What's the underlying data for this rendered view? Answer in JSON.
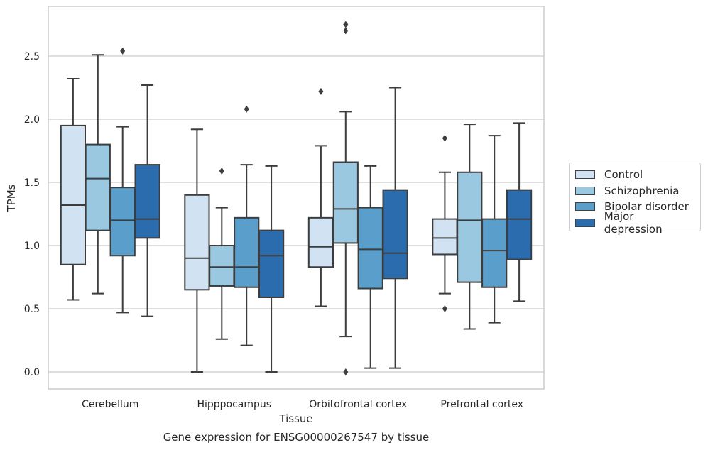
{
  "chart_data": {
    "type": "box",
    "categories": [
      "Cerebellum",
      "Hipppocampus",
      "Orbitofrontal cortex",
      "Prefrontal cortex"
    ],
    "xlabel": "Tissue",
    "ylabel": "TPMs",
    "caption": "Gene expression for ENSG00000267547 by tissue",
    "ylim": [
      -0.13,
      2.91
    ],
    "yticks": [
      "0.0",
      "0.5",
      "1.0",
      "1.5",
      "2.0",
      "2.5"
    ],
    "grid": true,
    "legend_position": "right",
    "series": [
      {
        "name": "Control",
        "color": "#d1e2f2",
        "boxes": [
          {
            "whislo": 0.57,
            "q1": 0.85,
            "med": 1.32,
            "q3": 1.95,
            "whishi": 2.32,
            "fliers": []
          },
          {
            "whislo": 0.0,
            "q1": 0.65,
            "med": 0.9,
            "q3": 1.4,
            "whishi": 1.92,
            "fliers": []
          },
          {
            "whislo": 0.52,
            "q1": 0.83,
            "med": 0.99,
            "q3": 1.22,
            "whishi": 1.79,
            "fliers": [
              2.22
            ]
          },
          {
            "whislo": 0.62,
            "q1": 0.93,
            "med": 1.06,
            "q3": 1.21,
            "whishi": 1.58,
            "fliers": [
              1.85,
              0.5
            ]
          }
        ]
      },
      {
        "name": "Schizophrenia",
        "color": "#9ac8e0",
        "boxes": [
          {
            "whislo": 0.62,
            "q1": 1.12,
            "med": 1.53,
            "q3": 1.8,
            "whishi": 2.51,
            "fliers": []
          },
          {
            "whislo": 0.26,
            "q1": 0.68,
            "med": 0.83,
            "q3": 1.0,
            "whishi": 1.3,
            "fliers": [
              1.59
            ]
          },
          {
            "whislo": 0.28,
            "q1": 1.02,
            "med": 1.29,
            "q3": 1.66,
            "whishi": 2.06,
            "fliers": [
              2.75,
              2.7,
              0.0
            ]
          },
          {
            "whislo": 0.34,
            "q1": 0.71,
            "med": 1.2,
            "q3": 1.58,
            "whishi": 1.96,
            "fliers": []
          }
        ]
      },
      {
        "name": "Bipolar disorder",
        "color": "#5a9fcb",
        "boxes": [
          {
            "whislo": 0.47,
            "q1": 0.92,
            "med": 1.2,
            "q3": 1.46,
            "whishi": 1.94,
            "fliers": [
              2.54
            ]
          },
          {
            "whislo": 0.21,
            "q1": 0.67,
            "med": 0.83,
            "q3": 1.22,
            "whishi": 1.64,
            "fliers": [
              2.08
            ]
          },
          {
            "whislo": 0.03,
            "q1": 0.66,
            "med": 0.97,
            "q3": 1.3,
            "whishi": 1.63,
            "fliers": []
          },
          {
            "whislo": 0.39,
            "q1": 0.67,
            "med": 0.96,
            "q3": 1.21,
            "whishi": 1.87,
            "fliers": []
          }
        ]
      },
      {
        "name": "Major depression",
        "color": "#2b6cae",
        "boxes": [
          {
            "whislo": 0.44,
            "q1": 1.06,
            "med": 1.21,
            "q3": 1.64,
            "whishi": 2.27,
            "fliers": []
          },
          {
            "whislo": 0.0,
            "q1": 0.59,
            "med": 0.92,
            "q3": 1.12,
            "whishi": 1.63,
            "fliers": []
          },
          {
            "whislo": 0.03,
            "q1": 0.74,
            "med": 0.94,
            "q3": 1.44,
            "whishi": 2.25,
            "fliers": []
          },
          {
            "whislo": 0.56,
            "q1": 0.89,
            "med": 1.21,
            "q3": 1.44,
            "whishi": 1.97,
            "fliers": []
          }
        ]
      }
    ]
  }
}
